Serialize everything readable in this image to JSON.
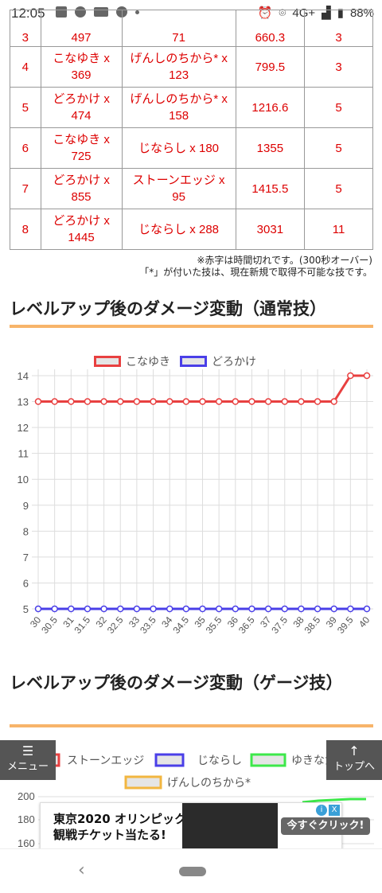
{
  "status_bar": {
    "time": "12:05",
    "network": "4G+",
    "battery": "88%",
    "icons_left": [
      "image-icon",
      "line-app-icon",
      "youtube-icon",
      "bird-icon",
      "dot-icon"
    ],
    "icons_right": [
      "alarm-icon",
      "location-icon",
      "signal-icon",
      "battery-icon"
    ]
  },
  "table": {
    "rows": [
      {
        "no": "3",
        "m1a": "",
        "m1b": "497",
        "m2a": "",
        "m2b": "71",
        "total": "660.3",
        "turns": "3"
      },
      {
        "no": "4",
        "m1a": "こなゆき x",
        "m1b": "369",
        "m2a": "げんしのちから* x",
        "m2b": "123",
        "total": "799.5",
        "turns": "3"
      },
      {
        "no": "5",
        "m1a": "どろかけ x",
        "m1b": "474",
        "m2a": "げんしのちから* x",
        "m2b": "158",
        "total": "1216.6",
        "turns": "5"
      },
      {
        "no": "6",
        "m1a": "こなゆき x",
        "m1b": "725",
        "m2a": "じならし x 180",
        "m2b": "",
        "total": "1355",
        "turns": "5"
      },
      {
        "no": "7",
        "m1a": "どろかけ x",
        "m1b": "855",
        "m2a": "ストーンエッジ x",
        "m2b": "95",
        "total": "1415.5",
        "turns": "5"
      },
      {
        "no": "8",
        "m1a": "どろかけ x",
        "m1b": "1445",
        "m2a": "じならし x 288",
        "m2b": "",
        "total": "3031",
        "turns": "11"
      }
    ]
  },
  "notes": {
    "line1": "※赤字は時間切れです。(300秒オーバー)",
    "line2": "「*」が付いた技は、現在新規で取得不可能な技です。"
  },
  "heading1": "レベルアップ後のダメージ変動（通常技）",
  "heading2": "レベルアップ後のダメージ変動（ゲージ技）",
  "chart_data": [
    {
      "type": "line",
      "x": [
        "30",
        "30.5",
        "31",
        "31.5",
        "32",
        "32.5",
        "33",
        "33.5",
        "34",
        "34.5",
        "35",
        "35.5",
        "36",
        "36.5",
        "37",
        "37.5",
        "38",
        "38.5",
        "39",
        "39.5",
        "40"
      ],
      "series": [
        {
          "name": "こなゆき",
          "color": "#e84040",
          "values": [
            13,
            13,
            13,
            13,
            13,
            13,
            13,
            13,
            13,
            13,
            13,
            13,
            13,
            13,
            13,
            13,
            13,
            13,
            13,
            14,
            14
          ]
        },
        {
          "name": "どろかけ",
          "color": "#4a3fe8",
          "values": [
            5,
            5,
            5,
            5,
            5,
            5,
            5,
            5,
            5,
            5,
            5,
            5,
            5,
            5,
            5,
            5,
            5,
            5,
            5,
            5,
            5
          ]
        }
      ],
      "ylim": [
        5,
        14
      ],
      "yticks": [
        5,
        6,
        7,
        8,
        9,
        10,
        11,
        12,
        13,
        14
      ],
      "grid": true,
      "legend": "top"
    },
    {
      "type": "line",
      "legend_items": [
        {
          "name": "ストーンエッジ",
          "color": "#e84040"
        },
        {
          "name": "じならし",
          "color": "#4a3fe8"
        },
        {
          "name": "ゆきなだれ",
          "color": "#3de84a"
        },
        {
          "name": "げんしのちから*",
          "color": "#f2b640"
        }
      ],
      "yticks_visible": [
        200,
        180,
        160
      ]
    }
  ],
  "floating": {
    "menu_label": "メニュー",
    "top_label": "トップへ"
  },
  "ad": {
    "line1": "東京2020 オリンピック",
    "line2": "観戦チケット当たる!",
    "button": "今すぐクリック!",
    "info": "i",
    "close": "X"
  }
}
